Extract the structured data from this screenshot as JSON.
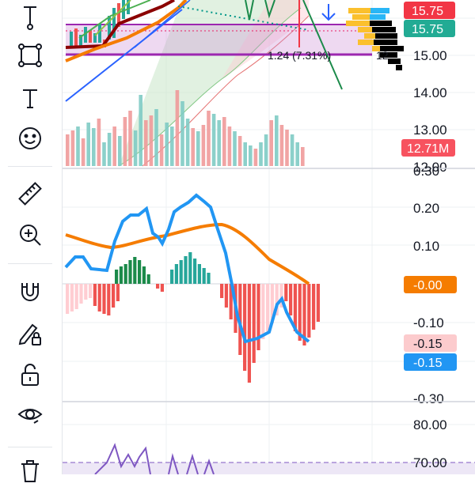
{
  "toolbar": {
    "tools": [
      {
        "name": "measure-line-icon"
      },
      {
        "name": "rectangle-icon"
      },
      {
        "name": "text-icon"
      },
      {
        "name": "emoji-icon"
      },
      {
        "name": "ruler-icon"
      },
      {
        "name": "zoom-in-icon"
      },
      {
        "name": "magnet-icon"
      },
      {
        "name": "pencil-lock-icon"
      },
      {
        "name": "unlock-icon"
      },
      {
        "name": "eye-icon"
      },
      {
        "name": "trash-icon"
      }
    ]
  },
  "price_pane": {
    "annotation": "1.24 (7.31%)",
    "annotation_extra": "12",
    "axis_ticks": [
      "15.00",
      "14.00",
      "13.00",
      "12.00"
    ],
    "badges": [
      {
        "text": "15.75",
        "color": "#f23645"
      },
      {
        "text": "15.75",
        "color": "#22ab94"
      },
      {
        "text": "12.71M",
        "color": "#f7525f"
      }
    ]
  },
  "macd_pane": {
    "axis_ticks": [
      "0.30",
      "0.20",
      "0.10",
      "-0.10",
      "-0.30"
    ],
    "badges": [
      {
        "text": "-0.00",
        "color": "#f57c00"
      },
      {
        "text": "-0.15",
        "color": "#fccbcd",
        "text_color": "#131722"
      },
      {
        "text": "-0.15",
        "color": "#2196f3"
      }
    ]
  },
  "rsi_pane": {
    "axis_ticks": [
      "80.00",
      "70.00"
    ]
  },
  "colors": {
    "up": "#26a69a",
    "down": "#ef5350",
    "macd": "#2196f3",
    "signal": "#f57c00",
    "rsi": "#7e57c2"
  }
}
